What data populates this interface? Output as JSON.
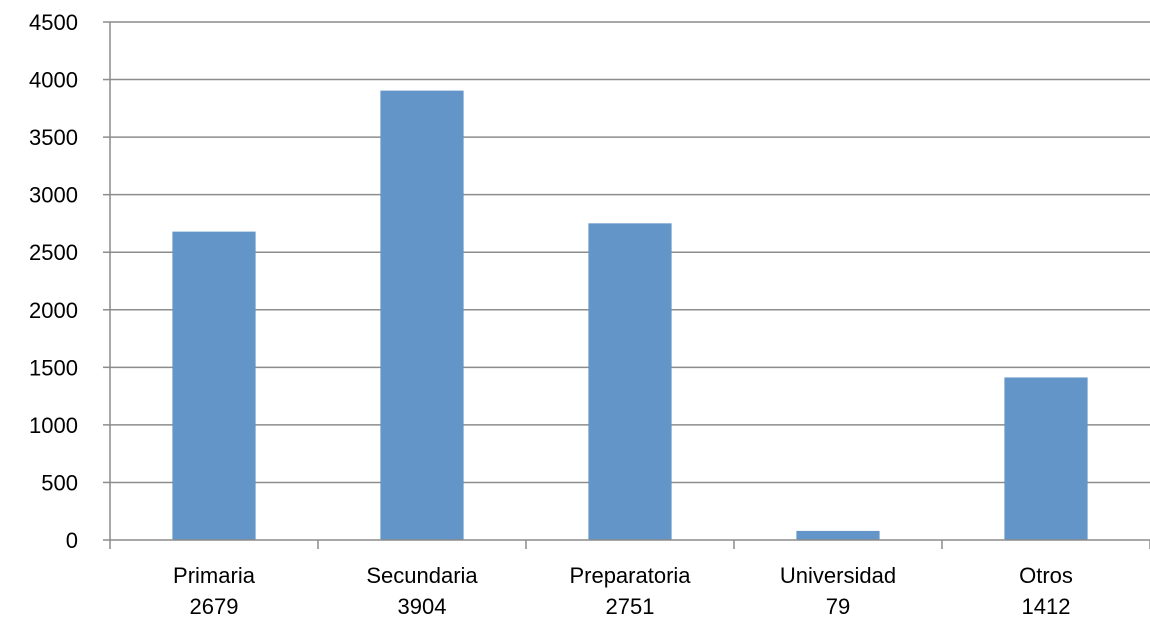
{
  "chart_data": {
    "type": "bar",
    "categories": [
      "Primaria",
      "Secundaria",
      "Preparatoria",
      "Universidad",
      "Otros"
    ],
    "values": [
      2679,
      3904,
      2751,
      79,
      1412
    ],
    "value_labels": [
      "2679",
      "3904",
      "2751",
      "79",
      "1412"
    ],
    "title": "",
    "xlabel": "",
    "ylabel": "",
    "ylim": [
      0,
      4500
    ],
    "yticks": [
      0,
      500,
      1000,
      1500,
      2000,
      2500,
      3000,
      3500,
      4000,
      4500
    ],
    "ytick_labels": [
      "0",
      "500",
      "1000",
      "1500",
      "2000",
      "2500",
      "3000",
      "3500",
      "4000",
      "4500"
    ],
    "grid": true,
    "legend": "none",
    "colors": {
      "bar": "#6495c9",
      "grid": "#8c8c8c",
      "text": "#000000"
    }
  }
}
